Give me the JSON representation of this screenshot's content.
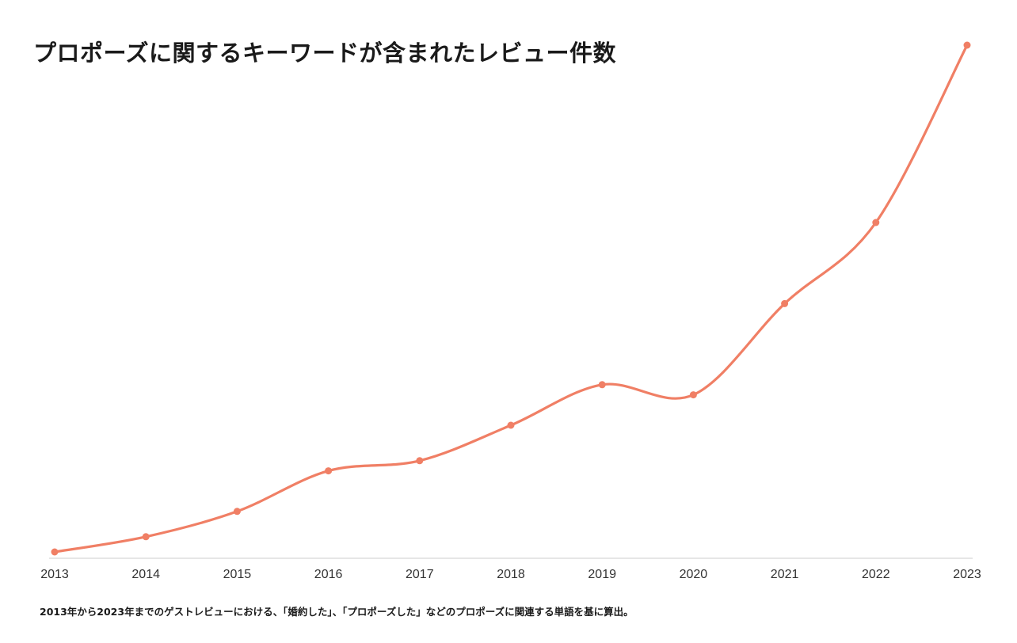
{
  "chart_data": {
    "type": "line",
    "title": "プロポーズに関するキーワードが含まれたレビュー件数",
    "xlabel": "",
    "ylabel": "",
    "x": [
      "2013",
      "2014",
      "2015",
      "2016",
      "2017",
      "2018",
      "2019",
      "2020",
      "2021",
      "2022",
      "2023"
    ],
    "series": [
      {
        "name": "",
        "color": "#f07f65",
        "values": [
          0,
          3,
          8,
          16,
          18,
          25,
          33,
          31,
          49,
          65,
          100
        ]
      }
    ],
    "y_visible": false,
    "ylim": [
      0,
      100
    ],
    "grid": false,
    "legend": "none",
    "line_style": "smooth",
    "markers": true
  },
  "footnote": "2013年から2023年までのゲストレビューにおける、「婚約した」、「プロポーズした」などのプロポーズに関連する単語を基に算出。",
  "colors": {
    "line": "#f07f65",
    "axis": "#dddddd",
    "text": "#1a1a1a"
  }
}
